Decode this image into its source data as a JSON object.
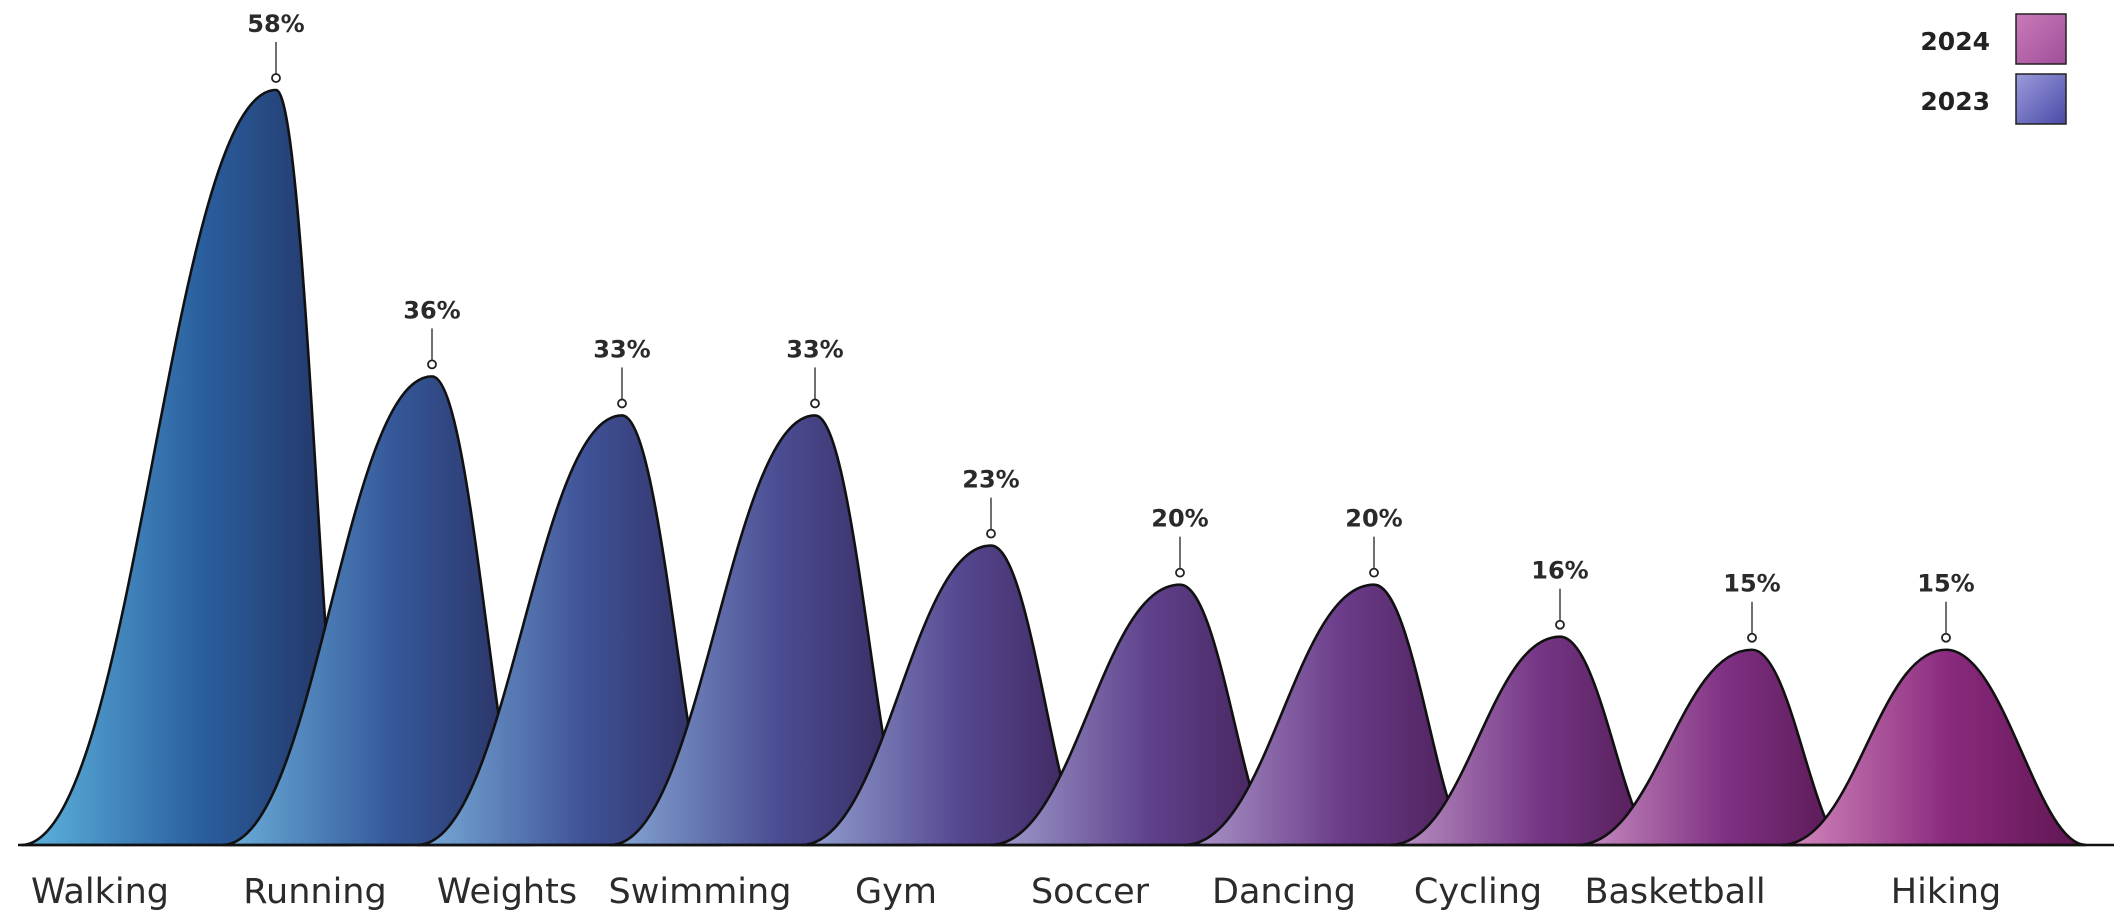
{
  "chart_data": {
    "type": "area",
    "categories": [
      "Walking",
      "Running",
      "Weights",
      "Swimming",
      "Gym",
      "Soccer",
      "Dancing",
      "Cycling",
      "Basketball",
      "Hiking"
    ],
    "values": [
      58,
      36,
      33,
      33,
      23,
      20,
      20,
      16,
      15,
      15
    ],
    "value_labels": [
      "58%",
      "36%",
      "33%",
      "33%",
      "23%",
      "20%",
      "20%",
      "16%",
      "15%",
      "15%"
    ],
    "ylim": [
      0,
      60
    ],
    "legend": [
      {
        "label": "2024",
        "color_top": "#c97bb8",
        "color_bottom": "#a04e9a"
      },
      {
        "label": "2023",
        "color_top": "#9b9bdc",
        "color_bottom": "#4a4aa8"
      }
    ],
    "legend_position": "top-right",
    "grid": false,
    "colors": {
      "first_left": "#5fb6e0",
      "first_mid": "#2a5e9e",
      "first_dark": "#23305f",
      "last_left": "#d68cc0",
      "last_mid": "#8a2a7e",
      "last_dark": "#5e1550"
    }
  }
}
